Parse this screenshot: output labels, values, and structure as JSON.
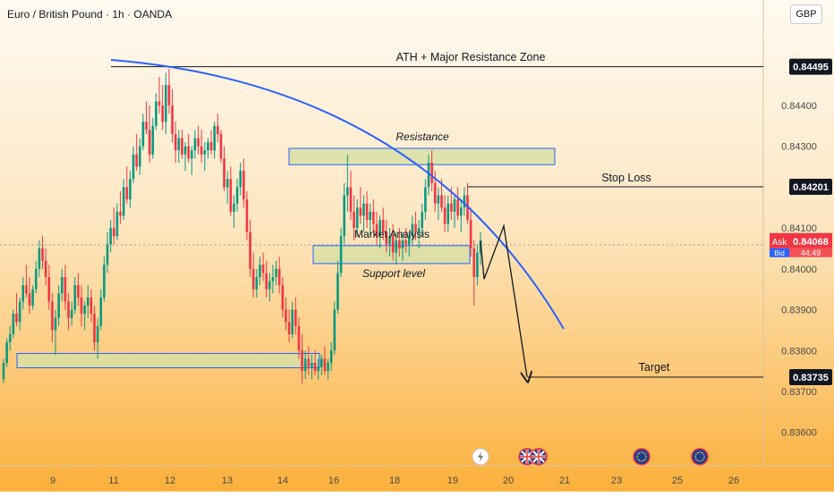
{
  "header": {
    "symbol": "Euro / British Pound · 1h · OANDA",
    "currency": "GBP"
  },
  "colors": {
    "bg_top": "#fffaf1",
    "bg_bottom": "#fbb03b",
    "up": "#089981",
    "down": "#f23645",
    "zone_fill": "#d8dfa5",
    "zone_stroke": "#2962ff",
    "curve": "#2962ff",
    "level_line": "#131722",
    "label_bg": "#131722"
  },
  "annotations": {
    "ath": "ATH + Major Resistance Zone",
    "resistance": "Resistance",
    "stop_loss": "Stop Loss",
    "target": "Target",
    "support": "Support level",
    "overlap": "Market Analysis"
  },
  "price_scale": {
    "ticks": [
      "0.84400",
      "0.84300",
      "0.84100",
      "0.84000",
      "0.83900",
      "0.83800",
      "0.83700",
      "0.83600"
    ],
    "ask_label": "Ask",
    "ask_price": "0.84068",
    "bid_label": "Bid",
    "bid_sub": "44:49",
    "level_labels": [
      "0.84495",
      "0.84201",
      "0.83735"
    ]
  },
  "time_axis": {
    "ticks": [
      "9",
      "11",
      "12",
      "13",
      "14",
      "16",
      "18",
      "19",
      "20",
      "21",
      "23",
      "25",
      "26"
    ]
  },
  "events": [
    {
      "type": "bolt-icon"
    },
    {
      "type": "uk-flag-icon"
    },
    {
      "type": "uk-flag-icon"
    },
    {
      "type": "eu-flag-icon"
    },
    {
      "type": "eu-flag-icon"
    }
  ],
  "chart_data": {
    "type": "candlestick",
    "title": "Euro / British Pound · 1h · OANDA",
    "currency": "GBP",
    "ylim": [
      0.8355,
      0.8455
    ],
    "x_ticks": [
      "9",
      "11",
      "12",
      "13",
      "14",
      "16",
      "18",
      "19",
      "20",
      "21",
      "23",
      "25",
      "26"
    ],
    "y_ticks": [
      0.844,
      0.843,
      0.841,
      0.84,
      0.839,
      0.838,
      0.837,
      0.836
    ],
    "candles": [
      [
        0.8373,
        0.8378,
        0.8372,
        0.8377
      ],
      [
        0.8377,
        0.8383,
        0.8376,
        0.8382
      ],
      [
        0.8382,
        0.8386,
        0.838,
        0.8384
      ],
      [
        0.8384,
        0.839,
        0.8383,
        0.8389
      ],
      [
        0.8389,
        0.8394,
        0.8386,
        0.8387
      ],
      [
        0.8387,
        0.8393,
        0.8385,
        0.8392
      ],
      [
        0.8392,
        0.8398,
        0.839,
        0.8396
      ],
      [
        0.8396,
        0.8401,
        0.8393,
        0.8394
      ],
      [
        0.8394,
        0.8398,
        0.8389,
        0.8391
      ],
      [
        0.8391,
        0.8396,
        0.839,
        0.8395
      ],
      [
        0.8395,
        0.8402,
        0.8394,
        0.84
      ],
      [
        0.84,
        0.8407,
        0.8398,
        0.8405
      ],
      [
        0.8405,
        0.8408,
        0.84,
        0.8402
      ],
      [
        0.8402,
        0.8405,
        0.8396,
        0.8398
      ],
      [
        0.8398,
        0.8401,
        0.839,
        0.8392
      ],
      [
        0.8392,
        0.8394,
        0.8382,
        0.8385
      ],
      [
        0.8385,
        0.839,
        0.8379,
        0.8388
      ],
      [
        0.8388,
        0.8396,
        0.8386,
        0.8394
      ],
      [
        0.8394,
        0.84,
        0.8392,
        0.8398
      ],
      [
        0.8398,
        0.8401,
        0.839,
        0.8392
      ],
      [
        0.8392,
        0.8394,
        0.8385,
        0.8388
      ],
      [
        0.8388,
        0.8392,
        0.8386,
        0.839
      ],
      [
        0.839,
        0.8398,
        0.8389,
        0.8396
      ],
      [
        0.8396,
        0.8399,
        0.8391,
        0.8393
      ],
      [
        0.8393,
        0.8396,
        0.8386,
        0.8389
      ],
      [
        0.8389,
        0.8392,
        0.8385,
        0.8391
      ],
      [
        0.8391,
        0.8396,
        0.8388,
        0.8393
      ],
      [
        0.8393,
        0.8395,
        0.8387,
        0.8389
      ],
      [
        0.8389,
        0.8391,
        0.838,
        0.8382
      ],
      [
        0.8382,
        0.8388,
        0.8378,
        0.8386
      ],
      [
        0.8386,
        0.8395,
        0.8385,
        0.8393
      ],
      [
        0.8393,
        0.8403,
        0.8392,
        0.8401
      ],
      [
        0.8401,
        0.8409,
        0.8399,
        0.8406
      ],
      [
        0.8406,
        0.8412,
        0.8404,
        0.841
      ],
      [
        0.841,
        0.8415,
        0.8406,
        0.8408
      ],
      [
        0.8408,
        0.8416,
        0.8407,
        0.8414
      ],
      [
        0.8414,
        0.8419,
        0.8411,
        0.8413
      ],
      [
        0.8413,
        0.8422,
        0.8412,
        0.842
      ],
      [
        0.842,
        0.8425,
        0.8416,
        0.8417
      ],
      [
        0.8417,
        0.8424,
        0.8415,
        0.8422
      ],
      [
        0.8422,
        0.843,
        0.8421,
        0.8428
      ],
      [
        0.8428,
        0.8433,
        0.8424,
        0.8425
      ],
      [
        0.8425,
        0.8432,
        0.8423,
        0.843
      ],
      [
        0.843,
        0.8438,
        0.8429,
        0.8436
      ],
      [
        0.8436,
        0.8441,
        0.8433,
        0.8434
      ],
      [
        0.8434,
        0.844,
        0.8426,
        0.8428
      ],
      [
        0.8428,
        0.8437,
        0.8427,
        0.8435
      ],
      [
        0.8435,
        0.8443,
        0.8434,
        0.8441
      ],
      [
        0.8441,
        0.8447,
        0.8438,
        0.844
      ],
      [
        0.844,
        0.8445,
        0.8434,
        0.8436
      ],
      [
        0.8436,
        0.8448,
        0.8433,
        0.8445
      ],
      [
        0.8445,
        0.8449,
        0.8438,
        0.844
      ],
      [
        0.844,
        0.8444,
        0.8431,
        0.8433
      ],
      [
        0.8433,
        0.8436,
        0.8426,
        0.8429
      ],
      [
        0.8429,
        0.8434,
        0.8426,
        0.8432
      ],
      [
        0.8432,
        0.8434,
        0.8427,
        0.8428
      ],
      [
        0.8428,
        0.8431,
        0.8424,
        0.843
      ],
      [
        0.843,
        0.8433,
        0.8426,
        0.8427
      ],
      [
        0.8427,
        0.843,
        0.8423,
        0.8429
      ],
      [
        0.8429,
        0.8434,
        0.8427,
        0.8432
      ],
      [
        0.8432,
        0.8435,
        0.8428,
        0.843
      ],
      [
        0.843,
        0.8434,
        0.8426,
        0.8428
      ],
      [
        0.8428,
        0.8431,
        0.8424,
        0.8429
      ],
      [
        0.8429,
        0.8432,
        0.8427,
        0.8431
      ],
      [
        0.8431,
        0.8434,
        0.8428,
        0.8429
      ],
      [
        0.8429,
        0.8436,
        0.8427,
        0.8435
      ],
      [
        0.8435,
        0.8438,
        0.8431,
        0.8433
      ],
      [
        0.8433,
        0.8434,
        0.8426,
        0.8427
      ],
      [
        0.8427,
        0.843,
        0.8419,
        0.842
      ],
      [
        0.842,
        0.8424,
        0.8416,
        0.8422
      ],
      [
        0.8422,
        0.8425,
        0.8413,
        0.8414
      ],
      [
        0.8414,
        0.8418,
        0.841,
        0.8416
      ],
      [
        0.8416,
        0.8422,
        0.8414,
        0.842
      ],
      [
        0.842,
        0.8426,
        0.8418,
        0.8424
      ],
      [
        0.8424,
        0.8427,
        0.8415,
        0.8417
      ],
      [
        0.8417,
        0.8419,
        0.8407,
        0.8409
      ],
      [
        0.8409,
        0.8412,
        0.8398,
        0.84
      ],
      [
        0.84,
        0.8404,
        0.8393,
        0.8395
      ],
      [
        0.8395,
        0.84,
        0.8393,
        0.8398
      ],
      [
        0.8398,
        0.8403,
        0.8396,
        0.8401
      ],
      [
        0.8401,
        0.8404,
        0.8397,
        0.8399
      ],
      [
        0.8399,
        0.8402,
        0.8393,
        0.8395
      ],
      [
        0.8395,
        0.8399,
        0.8392,
        0.8397
      ],
      [
        0.8397,
        0.8401,
        0.8394,
        0.8398
      ],
      [
        0.8398,
        0.8402,
        0.8396,
        0.84
      ],
      [
        0.84,
        0.8403,
        0.8394,
        0.8396
      ],
      [
        0.8396,
        0.8398,
        0.8388,
        0.839
      ],
      [
        0.839,
        0.8393,
        0.8385,
        0.8387
      ],
      [
        0.8387,
        0.839,
        0.8382,
        0.8384
      ],
      [
        0.8384,
        0.8392,
        0.8383,
        0.839
      ],
      [
        0.839,
        0.8393,
        0.8384,
        0.8386
      ],
      [
        0.8386,
        0.8388,
        0.8378,
        0.838
      ],
      [
        0.838,
        0.8384,
        0.8372,
        0.8375
      ],
      [
        0.8375,
        0.838,
        0.8373,
        0.8378
      ],
      [
        0.8378,
        0.8381,
        0.8374,
        0.8376
      ],
      [
        0.8376,
        0.8379,
        0.8373,
        0.8377
      ],
      [
        0.8377,
        0.838,
        0.8374,
        0.8375
      ],
      [
        0.8375,
        0.8378,
        0.8373,
        0.8376
      ],
      [
        0.8376,
        0.8379,
        0.8374,
        0.8378
      ],
      [
        0.8378,
        0.8381,
        0.8374,
        0.8375
      ],
      [
        0.8375,
        0.8378,
        0.8373,
        0.8377
      ],
      [
        0.8377,
        0.8382,
        0.8375,
        0.838
      ],
      [
        0.838,
        0.8392,
        0.8379,
        0.839
      ],
      [
        0.839,
        0.8402,
        0.8389,
        0.8399
      ],
      [
        0.8399,
        0.841,
        0.8398,
        0.8408
      ],
      [
        0.8408,
        0.8421,
        0.8406,
        0.8418
      ],
      [
        0.8418,
        0.8428,
        0.8414,
        0.842
      ],
      [
        0.842,
        0.8424,
        0.8412,
        0.8414
      ],
      [
        0.8414,
        0.8418,
        0.8407,
        0.841
      ],
      [
        0.841,
        0.8417,
        0.8408,
        0.8415
      ],
      [
        0.8415,
        0.842,
        0.8411,
        0.8413
      ],
      [
        0.8413,
        0.8418,
        0.8409,
        0.8416
      ],
      [
        0.8416,
        0.8419,
        0.841,
        0.8412
      ],
      [
        0.8412,
        0.8416,
        0.8408,
        0.8414
      ],
      [
        0.8414,
        0.8417,
        0.8409,
        0.8411
      ],
      [
        0.8411,
        0.8414,
        0.8406,
        0.8408
      ],
      [
        0.8408,
        0.8413,
        0.8405,
        0.8412
      ],
      [
        0.8412,
        0.8415,
        0.8407,
        0.8409
      ],
      [
        0.8409,
        0.8412,
        0.8404,
        0.8406
      ],
      [
        0.8406,
        0.841,
        0.8403,
        0.8408
      ],
      [
        0.8408,
        0.8411,
        0.8402,
        0.8404
      ],
      [
        0.8404,
        0.8409,
        0.8401,
        0.8407
      ],
      [
        0.8407,
        0.841,
        0.8403,
        0.8405
      ],
      [
        0.8405,
        0.8409,
        0.8402,
        0.8407
      ],
      [
        0.8407,
        0.841,
        0.8404,
        0.8406
      ],
      [
        0.8406,
        0.8409,
        0.8403,
        0.8408
      ],
      [
        0.8408,
        0.8413,
        0.8406,
        0.8411
      ],
      [
        0.8411,
        0.8414,
        0.8407,
        0.8409
      ],
      [
        0.8409,
        0.8412,
        0.8405,
        0.841
      ],
      [
        0.841,
        0.8416,
        0.8408,
        0.8414
      ],
      [
        0.8414,
        0.8422,
        0.8412,
        0.842
      ],
      [
        0.842,
        0.8428,
        0.8418,
        0.8426
      ],
      [
        0.8426,
        0.8429,
        0.8419,
        0.8421
      ],
      [
        0.8421,
        0.8424,
        0.8414,
        0.8416
      ],
      [
        0.8416,
        0.842,
        0.8412,
        0.8418
      ],
      [
        0.8418,
        0.8422,
        0.8414,
        0.8415
      ],
      [
        0.8415,
        0.8418,
        0.8409,
        0.8411
      ],
      [
        0.8411,
        0.8418,
        0.8409,
        0.8416
      ],
      [
        0.8416,
        0.842,
        0.8412,
        0.8414
      ],
      [
        0.8414,
        0.8418,
        0.841,
        0.8417
      ],
      [
        0.8417,
        0.842,
        0.8412,
        0.8413
      ],
      [
        0.8413,
        0.8417,
        0.8409,
        0.8415
      ],
      [
        0.8415,
        0.842,
        0.8413,
        0.8418
      ],
      [
        0.8418,
        0.8421,
        0.8411,
        0.8412
      ],
      [
        0.8412,
        0.8415,
        0.8403,
        0.8405
      ],
      [
        0.8405,
        0.8407,
        0.8391,
        0.8398
      ],
      [
        0.8398,
        0.8406,
        0.8396,
        0.8404
      ],
      [
        0.8404,
        0.8409,
        0.8401,
        0.8407
      ]
    ],
    "levels": [
      {
        "label": "ATH + Major Resistance Zone",
        "value": 0.84495
      },
      {
        "label": "Stop Loss",
        "value": 0.84201
      },
      {
        "label": "Target",
        "value": 0.83735
      }
    ],
    "zones": [
      {
        "label": "Resistance",
        "from": 0.84255,
        "to": 0.84295
      },
      {
        "label": "Support level",
        "from": 0.84013,
        "to": 0.84057
      },
      {
        "from": 0.83758,
        "to": 0.83793
      }
    ],
    "current_ask": 0.84068,
    "projection": [
      0.84068,
      0.83975,
      0.84105,
      0.83735
    ]
  }
}
